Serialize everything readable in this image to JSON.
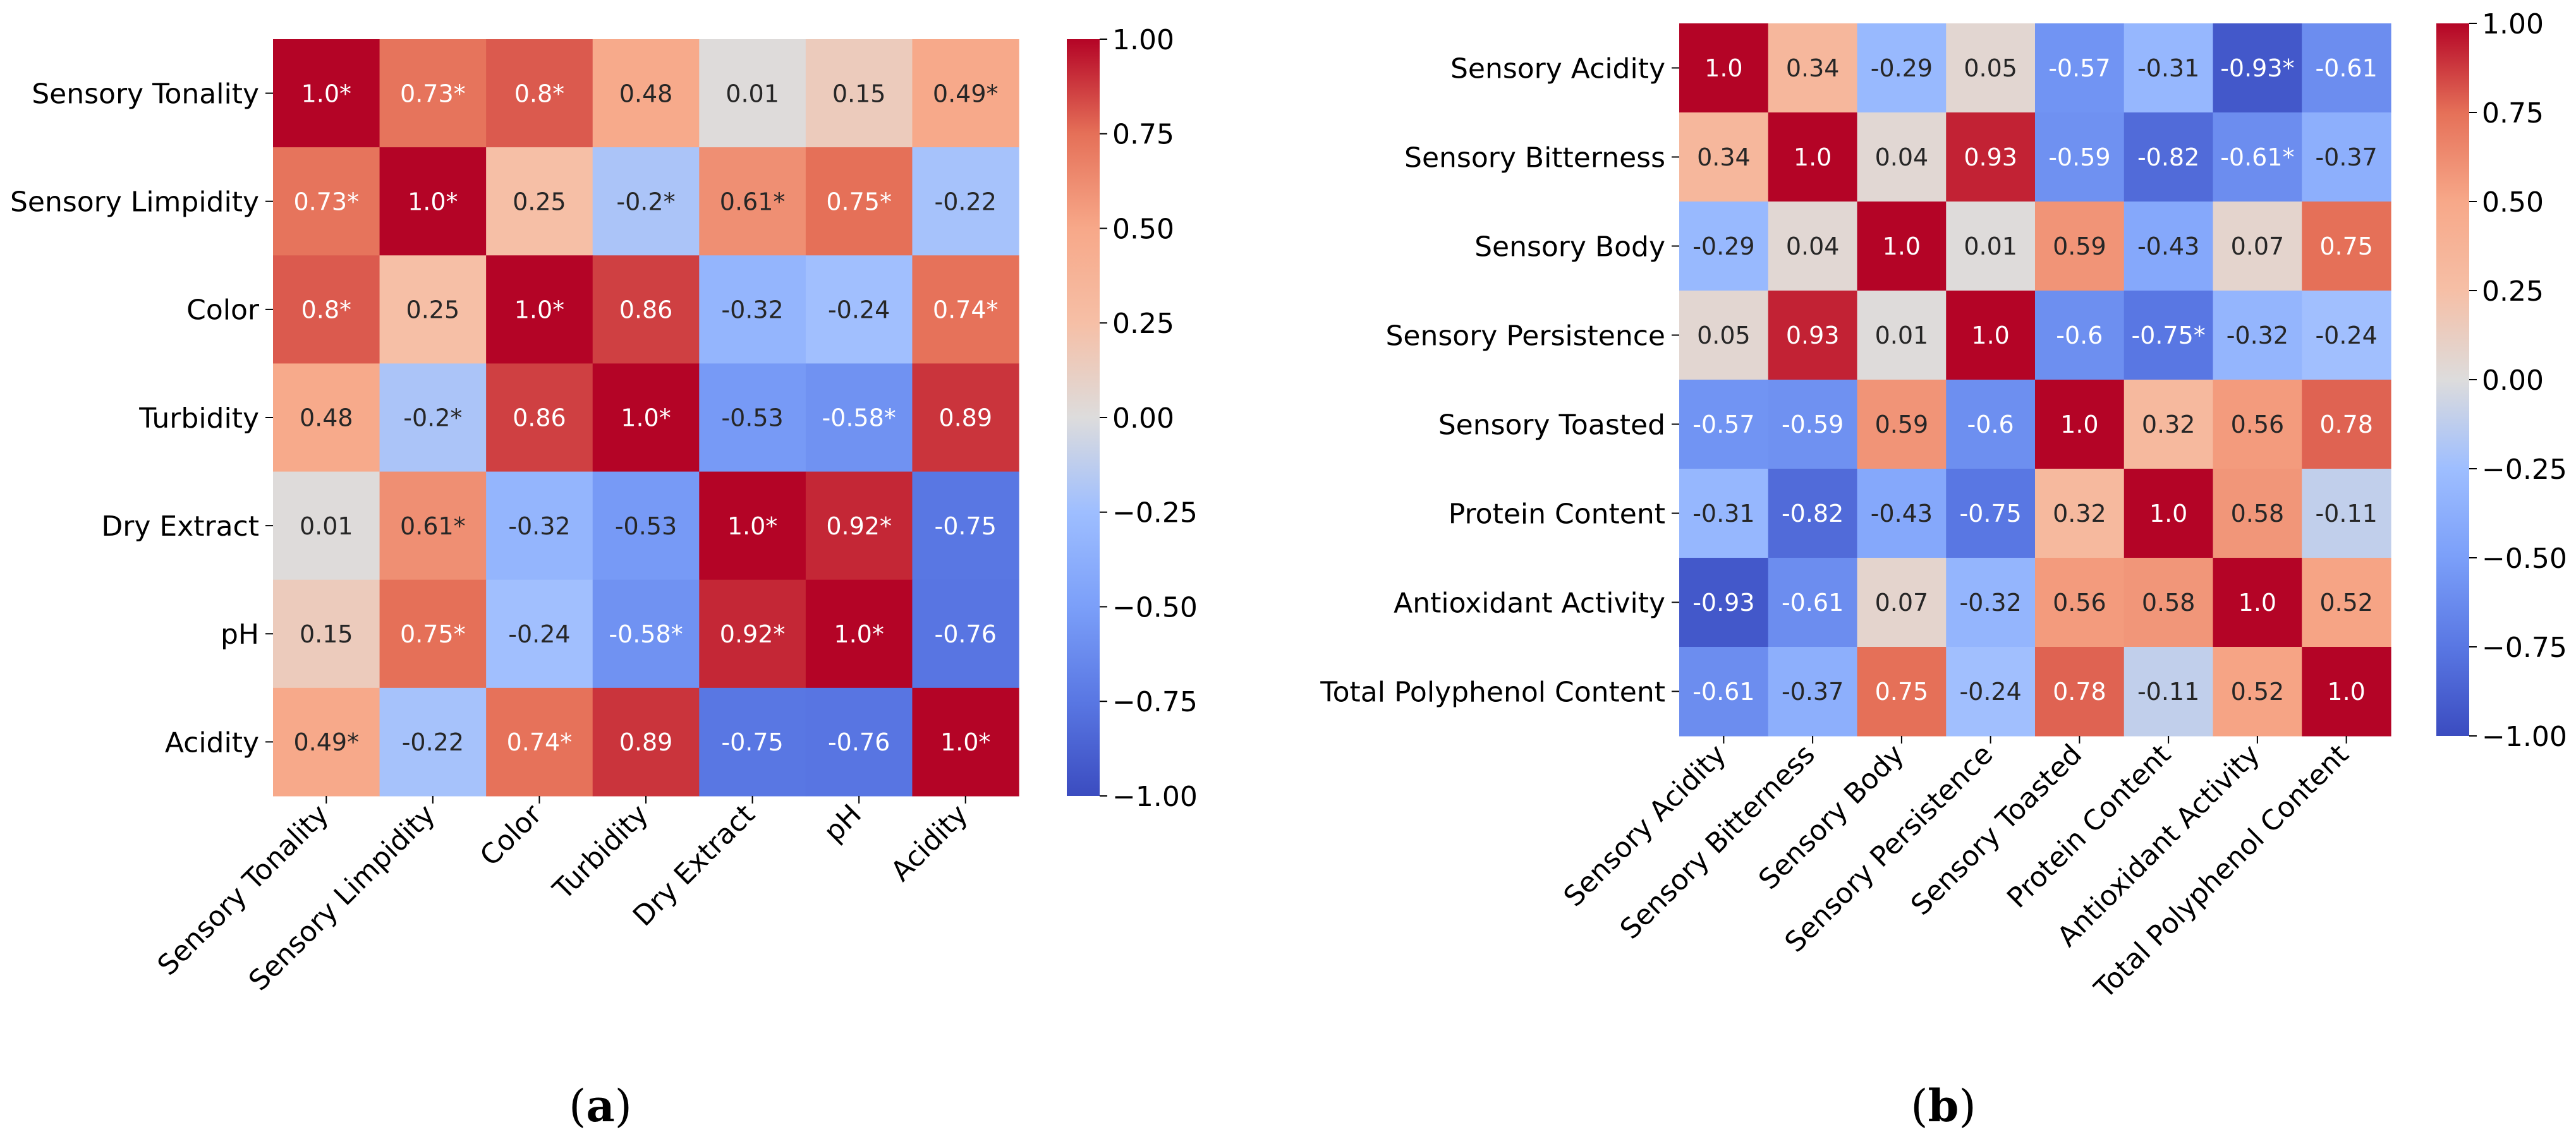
{
  "chart_data": [
    {
      "type": "heatmap",
      "panel_label": "a",
      "title": "",
      "row_labels": [
        "Sensory Tonality",
        "Sensory Limpidity",
        "Color",
        "Turbidity",
        "Dry Extract",
        "pH",
        "Acidity"
      ],
      "col_labels": [
        "Sensory Tonality",
        "Sensory Limpidity",
        "Color",
        "Turbidity",
        "Dry Extract",
        "pH",
        "Acidity"
      ],
      "values": [
        [
          1.0,
          0.73,
          0.8,
          0.48,
          0.01,
          0.15,
          0.49
        ],
        [
          0.73,
          1.0,
          0.25,
          -0.2,
          0.61,
          0.75,
          -0.22
        ],
        [
          0.8,
          0.25,
          1.0,
          0.86,
          -0.32,
          -0.24,
          0.74
        ],
        [
          0.48,
          -0.2,
          0.86,
          1.0,
          -0.53,
          -0.58,
          0.89
        ],
        [
          0.01,
          0.61,
          -0.32,
          -0.53,
          1.0,
          0.92,
          -0.75
        ],
        [
          0.15,
          0.75,
          -0.24,
          -0.58,
          0.92,
          1.0,
          -0.76
        ],
        [
          0.49,
          -0.22,
          0.74,
          0.89,
          -0.75,
          -0.76,
          1.0
        ]
      ],
      "cell_labels": [
        [
          "1.0*",
          "0.73*",
          "0.8*",
          "0.48",
          "0.01",
          "0.15",
          "0.49*"
        ],
        [
          "0.73*",
          "1.0*",
          "0.25",
          "-0.2*",
          "0.61*",
          "0.75*",
          "-0.22"
        ],
        [
          "0.8*",
          "0.25",
          "1.0*",
          "0.86",
          "-0.32",
          "-0.24",
          "0.74*"
        ],
        [
          "0.48",
          "-0.2*",
          "0.86",
          "1.0*",
          "-0.53",
          "-0.58*",
          "0.89"
        ],
        [
          "0.01",
          "0.61*",
          "-0.32",
          "-0.53",
          "1.0*",
          "0.92*",
          "-0.75"
        ],
        [
          "0.15",
          "0.75*",
          "-0.24",
          "-0.58*",
          "0.92*",
          "1.0*",
          "-0.76"
        ],
        [
          "0.49*",
          "-0.22",
          "0.74*",
          "0.89",
          "-0.75",
          "-0.76",
          "1.0*"
        ]
      ],
      "colorbar": {
        "range": [
          -1.0,
          1.0
        ],
        "ticks": [
          1.0,
          0.75,
          0.5,
          0.25,
          0.0,
          -0.25,
          -0.5,
          -0.75,
          -1.0
        ],
        "tick_labels": [
          "1.00",
          "0.75",
          "0.50",
          "0.25",
          "0.00",
          "−0.25",
          "−0.50",
          "−0.75",
          "−1.00"
        ],
        "colormap": "coolwarm"
      }
    },
    {
      "type": "heatmap",
      "panel_label": "b",
      "title": "",
      "row_labels": [
        "Sensory Acidity",
        "Sensory Bitterness",
        "Sensory Body",
        "Sensory Persistence",
        "Sensory Toasted",
        "Protein Content",
        "Antioxidant Activity",
        "Total Polyphenol Content"
      ],
      "col_labels": [
        "Sensory Acidity",
        "Sensory Bitterness",
        "Sensory Body",
        "Sensory Persistence",
        "Sensory Toasted",
        "Protein Content",
        "Antioxidant Activity",
        "Total Polyphenol Content"
      ],
      "values": [
        [
          1.0,
          0.34,
          -0.29,
          0.05,
          -0.57,
          -0.31,
          -0.93,
          -0.61
        ],
        [
          0.34,
          1.0,
          0.04,
          0.93,
          -0.59,
          -0.82,
          -0.61,
          -0.37
        ],
        [
          -0.29,
          0.04,
          1.0,
          0.01,
          0.59,
          -0.43,
          0.07,
          0.75
        ],
        [
          0.05,
          0.93,
          0.01,
          1.0,
          -0.6,
          -0.75,
          -0.32,
          -0.24
        ],
        [
          -0.57,
          -0.59,
          0.59,
          -0.6,
          1.0,
          0.32,
          0.56,
          0.78
        ],
        [
          -0.31,
          -0.82,
          -0.43,
          -0.75,
          0.32,
          1.0,
          0.58,
          -0.11
        ],
        [
          -0.93,
          -0.61,
          0.07,
          -0.32,
          0.56,
          0.58,
          1.0,
          0.52
        ],
        [
          -0.61,
          -0.37,
          0.75,
          -0.24,
          0.78,
          -0.11,
          0.52,
          1.0
        ]
      ],
      "cell_labels": [
        [
          "1.0",
          "0.34",
          "-0.29",
          "0.05",
          "-0.57",
          "-0.31",
          "-0.93*",
          "-0.61"
        ],
        [
          "0.34",
          "1.0",
          "0.04",
          "0.93",
          "-0.59",
          "-0.82",
          "-0.61*",
          "-0.37"
        ],
        [
          "-0.29",
          "0.04",
          "1.0",
          "0.01",
          "0.59",
          "-0.43",
          "0.07",
          "0.75"
        ],
        [
          "0.05",
          "0.93",
          "0.01",
          "1.0",
          "-0.6",
          "-0.75*",
          "-0.32",
          "-0.24"
        ],
        [
          "-0.57",
          "-0.59",
          "0.59",
          "-0.6",
          "1.0",
          "0.32",
          "0.56",
          "0.78"
        ],
        [
          "-0.31",
          "-0.82",
          "-0.43",
          "-0.75",
          "0.32",
          "1.0",
          "0.58",
          "-0.11"
        ],
        [
          "-0.93",
          "-0.61",
          "0.07",
          "-0.32",
          "0.56",
          "0.58",
          "1.0",
          "0.52"
        ],
        [
          "-0.61",
          "-0.37",
          "0.75",
          "-0.24",
          "0.78",
          "-0.11",
          "0.52",
          "1.0"
        ]
      ],
      "colorbar": {
        "range": [
          -1.0,
          1.0
        ],
        "ticks": [
          1.0,
          0.75,
          0.5,
          0.25,
          0.0,
          -0.25,
          -0.5,
          -0.75,
          -1.0
        ],
        "tick_labels": [
          "1.00",
          "0.75",
          "0.50",
          "0.25",
          "0.00",
          "−0.25",
          "−0.50",
          "−0.75",
          "−1.00"
        ],
        "colormap": "coolwarm"
      }
    }
  ]
}
